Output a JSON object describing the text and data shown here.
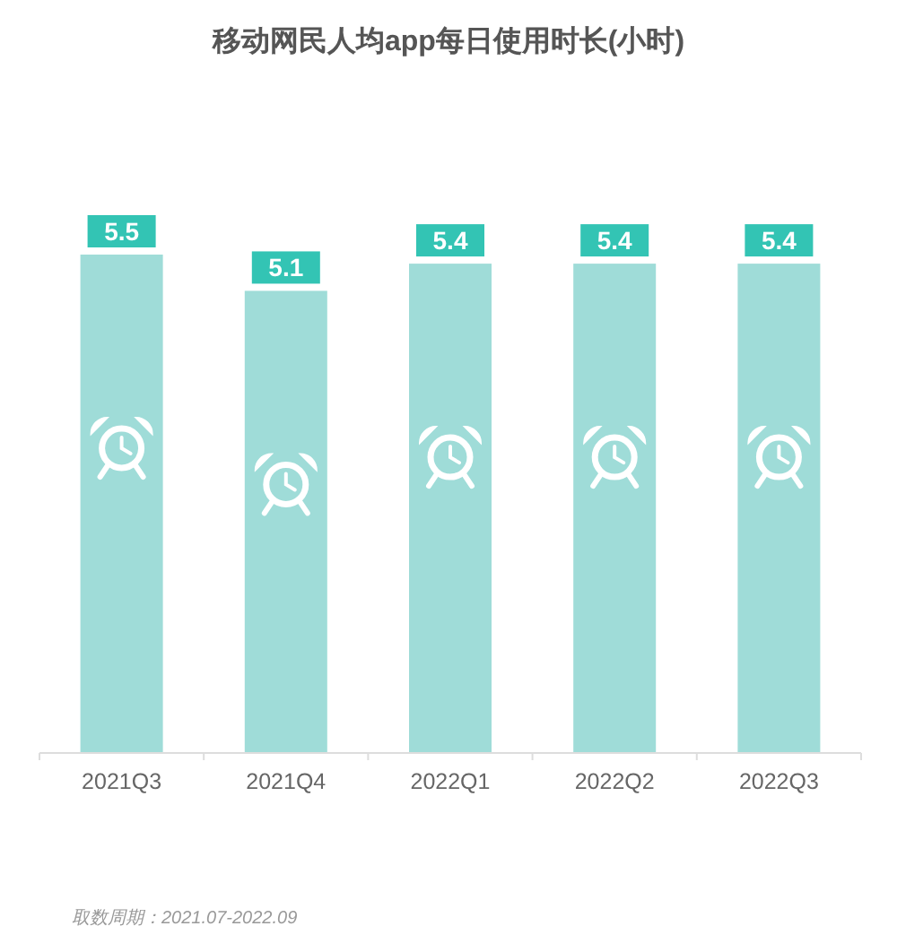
{
  "chart_data": {
    "type": "bar",
    "title": "移动网民人均app每日使用时长(小时)",
    "categories": [
      "2021Q3",
      "2021Q4",
      "2022Q1",
      "2022Q2",
      "2022Q3"
    ],
    "values": [
      5.5,
      5.1,
      5.4,
      5.4,
      5.4
    ],
    "color": "#9fdcd8",
    "data_labels": true,
    "annotations": [
      "取数周期：2021.07-2022.09"
    ]
  }
}
